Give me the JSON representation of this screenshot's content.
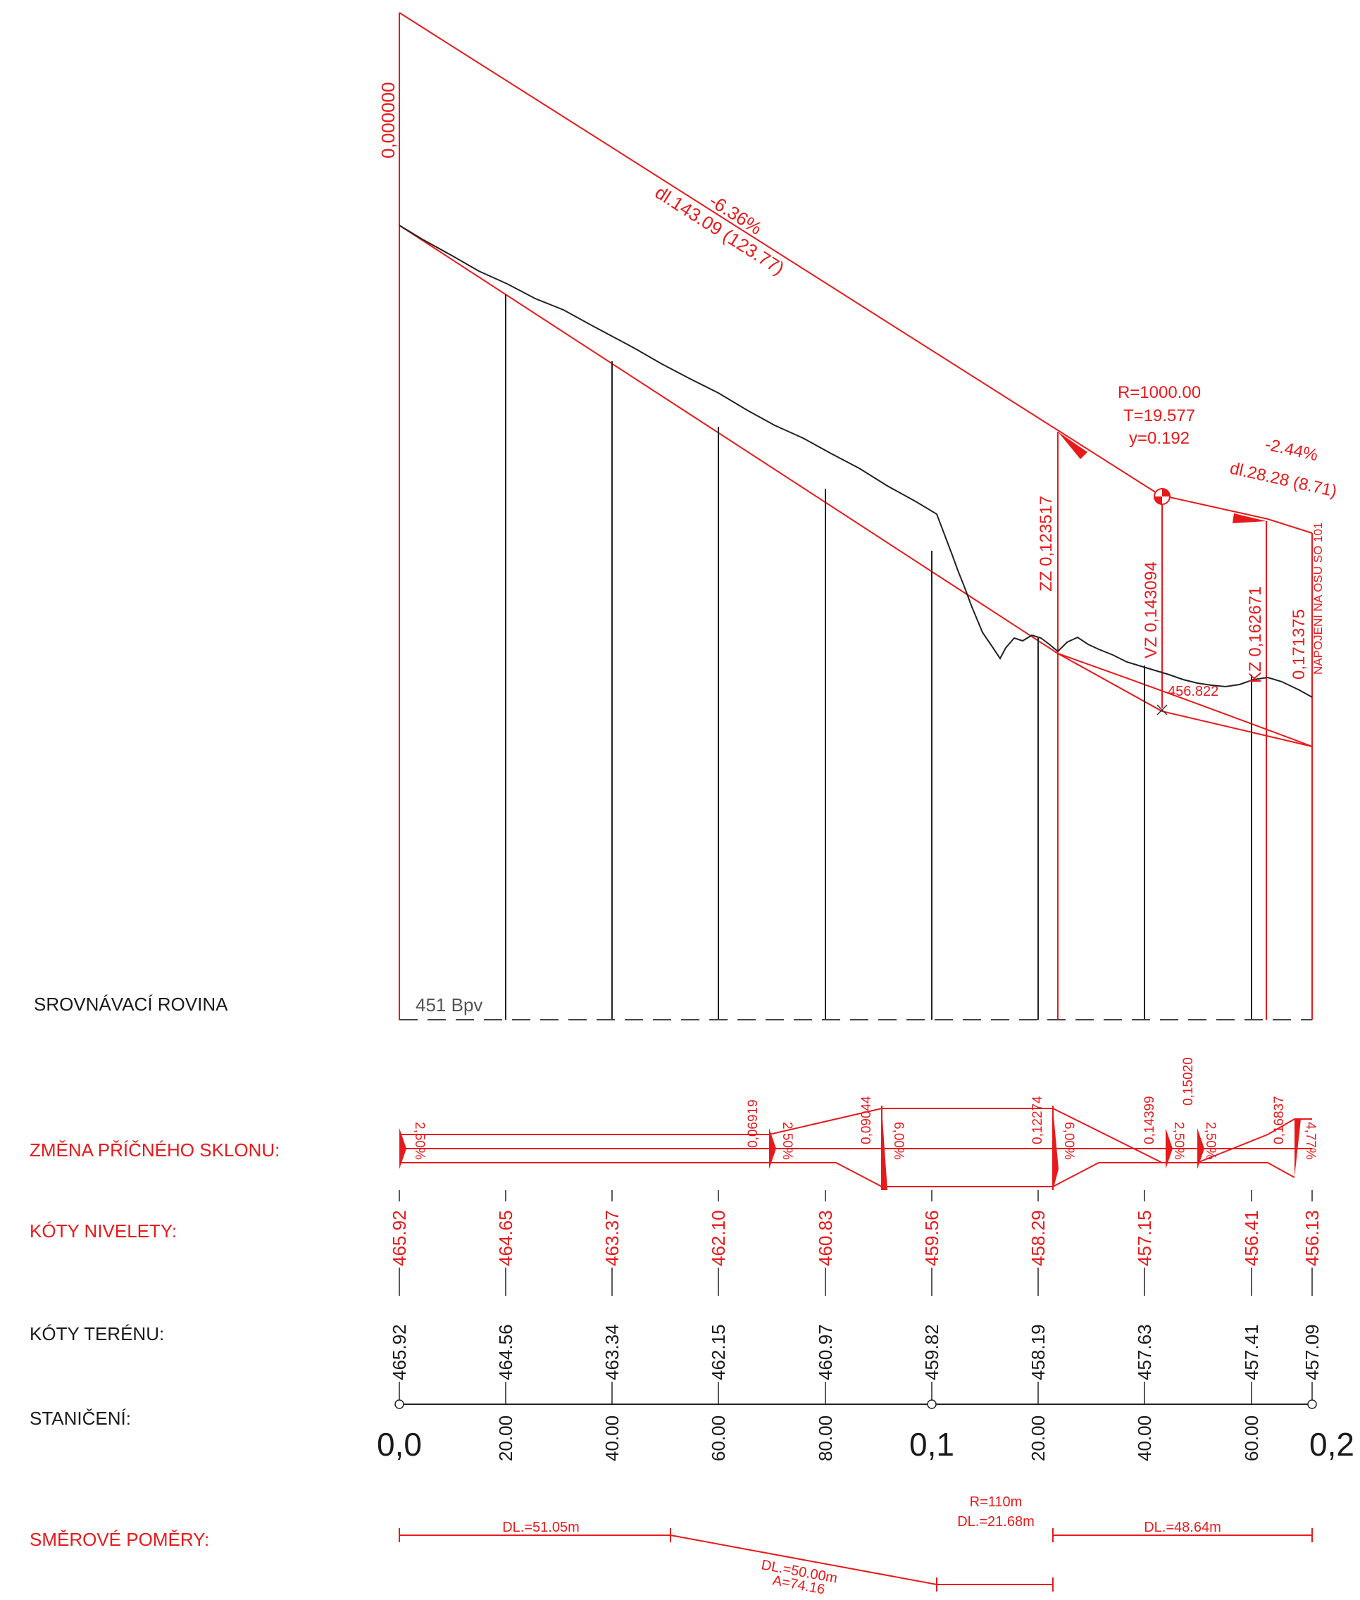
{
  "colors": {
    "design": "#e8191b",
    "terrain": "#1a1a1a",
    "background": "#ffffff"
  },
  "profile": {
    "start_chainage_label": "0,000000",
    "grade1": {
      "slope": "-6.36%",
      "length": "dl.143.09 (123.77)"
    },
    "curve": {
      "radius": "R=1000.00",
      "tangent": "T=19.577",
      "y": "y=0.192"
    },
    "grade2": {
      "slope": "-2.44%",
      "length": "dl.28.28 (8.71)"
    },
    "points": {
      "zz": "ZZ 0,123517",
      "vz": "VZ 0,143094",
      "kz": "KZ 0,162671",
      "end": "0,171375",
      "end_note": "NAPOJENÍ NA OSU SO 101"
    },
    "pvi_elevation": "456.822",
    "datum_elevation": "451  Bpv"
  },
  "rows": {
    "datum": "SROVNÁVACÍ ROVINA",
    "cross_slope": "ZMĚNA PŘÍČNÉHO SKLONU:",
    "design_levels": "KÓTY NIVELETY:",
    "terrain_levels": "KÓTY TERÉNU:",
    "chainage": "STANIČENÍ:",
    "alignment": "SMĚROVÉ POMĚRY:"
  },
  "cross_slope": {
    "stations": [
      "0,06919",
      "0,09044",
      "0,12274",
      "0,14399",
      "0,15020",
      "0,16837"
    ],
    "values": [
      "2,50%",
      "2,50%",
      "6,00%",
      "6,00%",
      "2,50%",
      "2,50%",
      "4,77%"
    ]
  },
  "stations": [
    {
      "design": "465.92",
      "terrain": "465.92",
      "label": "0,0"
    },
    {
      "design": "464.65",
      "terrain": "464.56",
      "label": "20.00"
    },
    {
      "design": "463.37",
      "terrain": "463.34",
      "label": "40.00"
    },
    {
      "design": "462.10",
      "terrain": "462.15",
      "label": "60.00"
    },
    {
      "design": "460.83",
      "terrain": "460.97",
      "label": "80.00"
    },
    {
      "design": "459.56",
      "terrain": "459.82",
      "label": "0,1"
    },
    {
      "design": "458.29",
      "terrain": "458.19",
      "label": "20.00"
    },
    {
      "design": "457.15",
      "terrain": "457.63",
      "label": "40.00"
    },
    {
      "design": "456.41",
      "terrain": "457.41",
      "label": "60.00"
    },
    {
      "design": "456.13",
      "terrain": "457.09",
      "label": "0,2"
    }
  ],
  "alignment": {
    "segment1": "DL.=51.05m",
    "transition_length": "DL.=50.00m",
    "transition_param": "A=74.16",
    "arc_radius": "R=110m",
    "arc_length": "DL.=21.68m",
    "segment3": "DL.=48.64m"
  }
}
